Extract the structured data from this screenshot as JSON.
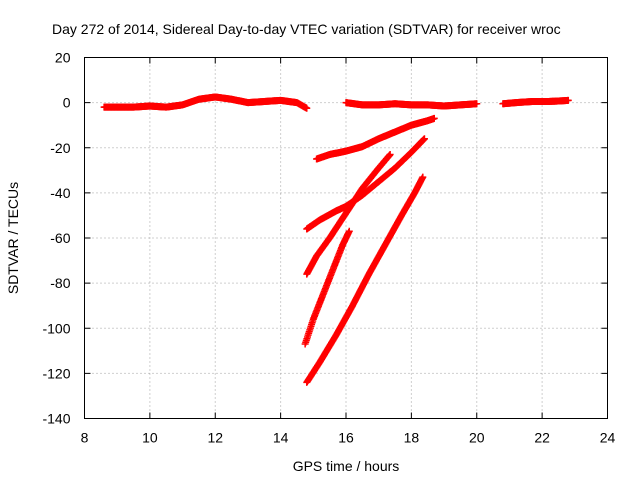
{
  "chart_data": {
    "type": "scatter",
    "title": "Day 272 of 2014, Sidereal Day-to-day VTEC variation (SDTVAR) for receiver wroc",
    "xlabel": "GPS time / hours",
    "ylabel": "SDTVAR / TECUs",
    "xlim": [
      8,
      24
    ],
    "ylim": [
      -140,
      20
    ],
    "x_ticks": [
      8,
      10,
      12,
      14,
      16,
      18,
      20,
      22,
      24
    ],
    "y_ticks": [
      -140,
      -120,
      -100,
      -80,
      -60,
      -40,
      -20,
      0,
      20
    ],
    "x_tick_labels": [
      "8",
      "10",
      "12",
      "14",
      "16",
      "18",
      "20",
      "22",
      "24"
    ],
    "y_tick_labels": [
      "-140",
      "-120",
      "-100",
      "-80",
      "-60",
      "-40",
      "-20",
      "0",
      "20"
    ],
    "grid": true,
    "marker": "+",
    "color": "#ff0000",
    "series": [
      {
        "x": [
          8.6,
          9.0,
          9.5,
          10.0,
          10.5,
          11.0,
          11.5,
          12.0,
          12.5,
          13.0,
          13.5,
          14.0,
          14.5,
          14.8
        ],
        "y": [
          -2,
          -2,
          -2,
          -1.5,
          -2,
          -1,
          1.5,
          2.5,
          1.5,
          0,
          0.5,
          1,
          0,
          -2.5
        ]
      },
      {
        "x": [
          16.0,
          16.5,
          17.0,
          17.5,
          18.0,
          18.5,
          19.0,
          19.5,
          20.0
        ],
        "y": [
          0,
          -1,
          -1,
          -0.5,
          -1,
          -1,
          -1.5,
          -1,
          -0.5
        ]
      },
      {
        "x": [
          20.8,
          21.2,
          21.7,
          22.2,
          22.6,
          22.8
        ],
        "y": [
          -0.5,
          0,
          0.5,
          0.5,
          0.8,
          1
        ]
      },
      {
        "x": [
          15.1,
          15.5,
          16.0,
          16.5,
          17.0,
          17.5,
          18.0,
          18.5,
          18.7
        ],
        "y": [
          -25,
          -23,
          -21.5,
          -19.5,
          -16,
          -13,
          -10,
          -8,
          -7
        ]
      },
      {
        "x": [
          14.8,
          15.2,
          15.7,
          16.0,
          16.5,
          17.0,
          17.5,
          18.0,
          18.4
        ],
        "y": [
          -56,
          -52,
          -48,
          -46,
          -41,
          -35,
          -29,
          -22,
          -16
        ]
      },
      {
        "x": [
          14.8,
          15.1,
          15.5,
          16.0,
          16.5,
          17.0,
          17.35
        ],
        "y": [
          -76,
          -68,
          -60,
          -49,
          -38,
          -29,
          -23
        ]
      },
      {
        "x": [
          14.75,
          15.0,
          15.3,
          15.6,
          15.9,
          16.1
        ],
        "y": [
          -107,
          -96,
          -85,
          -74,
          -63,
          -57
        ]
      },
      {
        "x": [
          14.8,
          15.2,
          15.7,
          16.2,
          16.7,
          17.2,
          17.7,
          18.1,
          18.35
        ],
        "y": [
          -124,
          -115,
          -103,
          -90,
          -76,
          -63,
          -50,
          -40,
          -33
        ]
      }
    ]
  }
}
